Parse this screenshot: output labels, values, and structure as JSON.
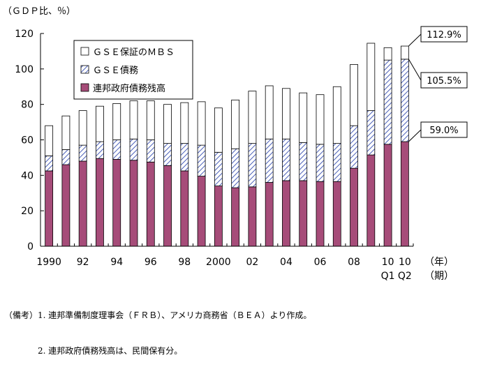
{
  "chart_data": {
    "type": "bar",
    "stacked": true,
    "unit_label": "（ＧＤＰ比、％）",
    "ylim": [
      0,
      120
    ],
    "yticks": [
      0,
      20,
      40,
      60,
      80,
      100,
      120
    ],
    "x_suffix": [
      "（年）",
      "（期）"
    ],
    "x": [
      "1990",
      "1991",
      "1992",
      "1993",
      "1994",
      "1995",
      "1996",
      "1997",
      "1998",
      "1999",
      "2000",
      "2001",
      "2002",
      "2003",
      "2004",
      "2005",
      "2006",
      "2007",
      "2008",
      "2009",
      "2010Q1",
      "2010Q2"
    ],
    "x_tick_labels": [
      {
        "index": 0,
        "lines": [
          "1990"
        ]
      },
      {
        "index": 2,
        "lines": [
          "92"
        ]
      },
      {
        "index": 4,
        "lines": [
          "94"
        ]
      },
      {
        "index": 6,
        "lines": [
          "96"
        ]
      },
      {
        "index": 8,
        "lines": [
          "98"
        ]
      },
      {
        "index": 10,
        "lines": [
          "2000"
        ]
      },
      {
        "index": 12,
        "lines": [
          "02"
        ]
      },
      {
        "index": 14,
        "lines": [
          "04"
        ]
      },
      {
        "index": 16,
        "lines": [
          "06"
        ]
      },
      {
        "index": 18,
        "lines": [
          "08"
        ]
      },
      {
        "index": 20,
        "lines": [
          "10",
          "Q1"
        ]
      },
      {
        "index": 21,
        "lines": [
          "10",
          "Q2"
        ]
      }
    ],
    "series": [
      {
        "name": "連邦政府債務残高",
        "color": "#a64c79",
        "pattern": "solid",
        "values": [
          42.5,
          46,
          48,
          49.5,
          49,
          48.5,
          47.5,
          45.5,
          42.5,
          39.5,
          34,
          33,
          33.5,
          36,
          37,
          37,
          36.5,
          36.5,
          44,
          51.5,
          57.5,
          59.0
        ]
      },
      {
        "name": "ＧＳＥ債務",
        "color": "#4a5fb8",
        "pattern": "hatch",
        "values": [
          8.5,
          8.5,
          9,
          9.5,
          11,
          12,
          12.5,
          12.5,
          15.5,
          17.5,
          19,
          22,
          24.5,
          24.5,
          23.5,
          21.5,
          21,
          21.5,
          24,
          25,
          47.5,
          46.5
        ]
      },
      {
        "name": "ＧＳＥ保証のＭＢＳ",
        "color": "#ffffff",
        "pattern": "open",
        "values": [
          17,
          19,
          19.5,
          20,
          20.5,
          21.5,
          22,
          22,
          23,
          24.5,
          25,
          27.5,
          29.5,
          30,
          28.5,
          28,
          28,
          32,
          34.5,
          38,
          7,
          7.4
        ]
      }
    ],
    "legend_order": [
      2,
      1,
      0
    ],
    "callouts": [
      {
        "label": "112.9%",
        "series": 2,
        "bar": 21
      },
      {
        "label": "105.5%",
        "series": 1,
        "bar": 21
      },
      {
        "label": "59.0%",
        "series": 0,
        "bar": 21
      }
    ]
  },
  "notes": [
    "（備考）1. 連邦準備制度理事会（ＦＲＢ）、アメリカ商務省（ＢＥＡ）より作成。",
    "　　　　2. 連邦政府債務残高は、民間保有分。"
  ]
}
